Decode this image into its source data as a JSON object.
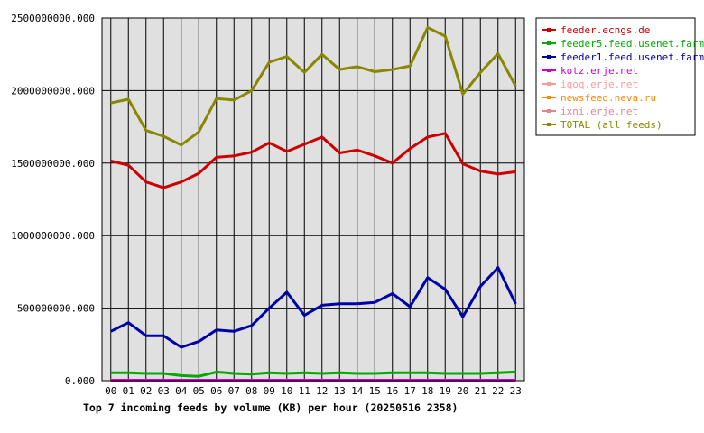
{
  "chart_data": {
    "type": "line",
    "caption": "Top 7 incoming feeds by volume (KB) per hour (20250516 2358)",
    "categories": [
      "00",
      "01",
      "02",
      "03",
      "04",
      "05",
      "06",
      "07",
      "08",
      "09",
      "10",
      "11",
      "12",
      "13",
      "14",
      "15",
      "16",
      "17",
      "18",
      "19",
      "20",
      "21",
      "22",
      "23"
    ],
    "ylim": [
      0,
      2500000000
    ],
    "yticks": [
      {
        "value": 0,
        "label": "0.000"
      },
      {
        "value": 500000000,
        "label": "500000000.000"
      },
      {
        "value": 1000000000,
        "label": "1000000000.000"
      },
      {
        "value": 1500000000,
        "label": "1500000000.000"
      },
      {
        "value": 2000000000,
        "label": "2000000000.000"
      },
      {
        "value": 2500000000,
        "label": "2500000000.000"
      }
    ],
    "grid": true,
    "legend_position": "right",
    "series": [
      {
        "name": "feeder.ecngs.de",
        "color": "#cc0000",
        "values": [
          1515000000,
          1485000000,
          1370000000,
          1330000000,
          1370000000,
          1430000000,
          1540000000,
          1550000000,
          1575000000,
          1640000000,
          1580000000,
          1630000000,
          1680000000,
          1570000000,
          1590000000,
          1550000000,
          1500000000,
          1600000000,
          1680000000,
          1705000000,
          1495000000,
          1445000000,
          1425000000,
          1440000000
        ]
      },
      {
        "name": "feeder5.feed.usenet.farm",
        "color": "#00aa00",
        "values": [
          55000000,
          55000000,
          50000000,
          50000000,
          35000000,
          30000000,
          60000000,
          50000000,
          45000000,
          55000000,
          50000000,
          55000000,
          50000000,
          55000000,
          50000000,
          50000000,
          55000000,
          55000000,
          55000000,
          50000000,
          50000000,
          50000000,
          55000000,
          60000000
        ]
      },
      {
        "name": "feeder1.feed.usenet.farm",
        "color": "#0000aa",
        "values": [
          340000000,
          400000000,
          310000000,
          310000000,
          230000000,
          270000000,
          350000000,
          340000000,
          380000000,
          500000000,
          610000000,
          450000000,
          520000000,
          530000000,
          530000000,
          540000000,
          600000000,
          510000000,
          710000000,
          630000000,
          440000000,
          650000000,
          780000000,
          530000000
        ]
      },
      {
        "name": "kotz.erje.net",
        "color": "#cc00cc",
        "values": [
          3000000,
          3000000,
          3000000,
          3000000,
          3000000,
          3000000,
          3000000,
          3000000,
          3000000,
          3000000,
          3000000,
          3000000,
          3000000,
          3000000,
          3000000,
          3000000,
          3000000,
          3000000,
          3000000,
          3000000,
          3000000,
          3000000,
          3000000,
          3000000
        ]
      },
      {
        "name": "iqoq.erje.net",
        "color": "#ff9999",
        "values": [
          2000000,
          2000000,
          2000000,
          2000000,
          2000000,
          2000000,
          2000000,
          2000000,
          2000000,
          2000000,
          2000000,
          2000000,
          2000000,
          2000000,
          2000000,
          2000000,
          2000000,
          2000000,
          2000000,
          2000000,
          2000000,
          2000000,
          2000000,
          2000000
        ]
      },
      {
        "name": "newsfeed.neva.ru",
        "color": "#ff8800",
        "values": [
          1000000,
          1000000,
          1000000,
          1000000,
          1000000,
          1000000,
          1000000,
          1000000,
          1000000,
          1000000,
          1000000,
          1000000,
          1000000,
          1000000,
          1000000,
          1000000,
          1000000,
          1000000,
          1000000,
          1000000,
          1000000,
          1000000,
          1000000,
          1000000
        ]
      },
      {
        "name": "ixni.erje.net",
        "color": "#dd8888",
        "values": [
          1000000,
          1000000,
          1000000,
          1000000,
          1000000,
          1000000,
          1000000,
          1000000,
          1000000,
          1000000,
          1000000,
          1000000,
          1000000,
          1000000,
          1000000,
          1000000,
          1000000,
          1000000,
          1000000,
          1000000,
          1000000,
          1000000,
          1000000,
          1000000
        ]
      },
      {
        "name": "TOTAL (all feeds)",
        "color": "#888800",
        "values": [
          1915000000,
          1940000000,
          1725000000,
          1685000000,
          1625000000,
          1715000000,
          1945000000,
          1935000000,
          2000000000,
          2195000000,
          2235000000,
          2125000000,
          2250000000,
          2145000000,
          2165000000,
          2130000000,
          2145000000,
          2170000000,
          2435000000,
          2375000000,
          1975000000,
          2125000000,
          2255000000,
          2030000000
        ]
      }
    ]
  }
}
